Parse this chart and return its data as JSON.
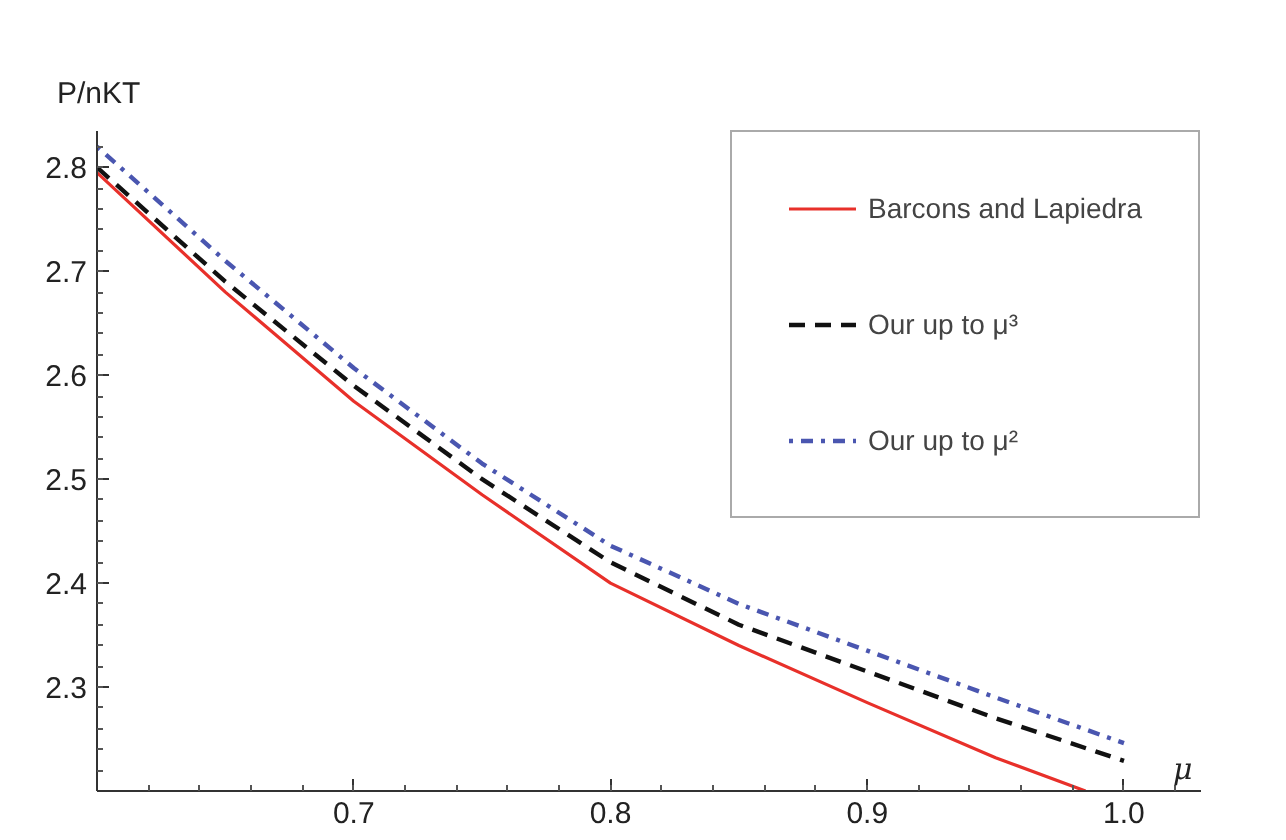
{
  "chart_data": {
    "type": "line",
    "ylabel": "P/nKT",
    "xlabel": "μ",
    "x": [
      0.6,
      0.65,
      0.7,
      0.75,
      0.8,
      0.85,
      0.9,
      0.95,
      1.0
    ],
    "series": [
      {
        "name": "Barcons and Lapiedra",
        "color": "#e8302a",
        "line_style": "solid",
        "x": [
          0.6,
          0.65,
          0.7,
          0.75,
          0.8,
          0.85,
          0.9,
          0.95,
          0.985
        ],
        "values": [
          2.795,
          2.68,
          2.575,
          2.485,
          2.4,
          2.34,
          2.285,
          2.232,
          2.2
        ]
      },
      {
        "name": "Our up to μ³",
        "color": "#111111",
        "line_style": "dashed",
        "values": [
          2.8,
          2.69,
          2.59,
          2.5,
          2.42,
          2.36,
          2.315,
          2.27,
          2.229
        ]
      },
      {
        "name": "Our up to μ²",
        "color": "#4a56b0",
        "line_style": "dotted",
        "values": [
          2.82,
          2.71,
          2.607,
          2.515,
          2.436,
          2.38,
          2.335,
          2.29,
          2.246
        ]
      }
    ],
    "xlim": [
      0.6,
      1.03
    ],
    "ylim": [
      2.2,
      2.835
    ],
    "xticks": [
      0.7,
      0.8,
      0.9,
      {
        "value": 1.0,
        "label": "1.0"
      }
    ],
    "yticks": [
      2.3,
      2.4,
      2.5,
      2.6,
      2.7,
      2.8
    ],
    "grid": false,
    "legend": "top right"
  }
}
